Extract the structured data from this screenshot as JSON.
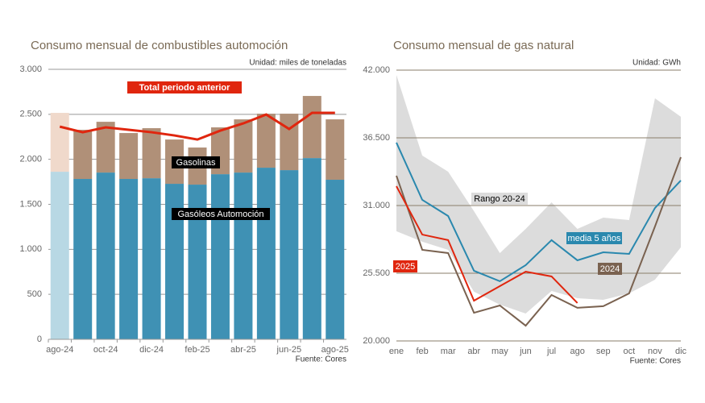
{
  "chart_data": [
    {
      "type": "stacked-bar",
      "title": "Consumo mensual de combustibles automoción",
      "unit_note": "Unidad: miles de toneladas",
      "source": "Fuente: Cores",
      "categories": [
        "ago-24",
        null,
        "oct-24",
        null,
        "dic-24",
        null,
        "feb-25",
        null,
        "abr-25",
        null,
        "jun-25",
        null,
        "ago-25"
      ],
      "highlight_index": 0,
      "series": [
        {
          "name": "Gasóleos Automoción",
          "color": "#3f91b4",
          "highlight_color": "#b8d8e4",
          "values": [
            1862,
            1782,
            1853,
            1782,
            1790,
            1728,
            1719,
            1835,
            1853,
            1907,
            1880,
            2014,
            1773
          ]
        },
        {
          "name": "Gasolinas",
          "color": "#b09078",
          "highlight_color": "#f0d9cb",
          "values": [
            654,
            546,
            564,
            510,
            556,
            492,
            412,
            520,
            591,
            600,
            627,
            690,
            671
          ]
        },
        {
          "name": "Total periodo anterior",
          "type": "line",
          "color": "#e0260e",
          "values": [
            2363,
            2301,
            2355,
            2328,
            2301,
            2265,
            2220,
            2319,
            2399,
            2498,
            2337,
            2516,
            2516
          ]
        }
      ],
      "ylim": [
        0,
        3000
      ],
      "yticks": [
        0,
        500,
        {
          "value": 1000,
          "label": "1.000"
        },
        {
          "value": 1500,
          "label": "1.500"
        },
        {
          "value": 2000,
          "label": "2.000"
        },
        {
          "value": 2500,
          "label": "2.500"
        },
        {
          "value": 3000,
          "label": "3.000"
        }
      ],
      "grid": true
    },
    {
      "type": "line",
      "title": "Consumo mensual de gas natural",
      "unit_note": "Unidad: GWh",
      "source": "Fuente: Cores",
      "categories": [
        "ene",
        "feb",
        "mar",
        "abr",
        "may",
        "jun",
        "jul",
        "ago",
        "sep",
        "oct",
        "nov",
        "dic"
      ],
      "band": {
        "name": "Rango 20-24",
        "color": "#dcdcdc",
        "upper": [
          41610,
          35060,
          33750,
          30540,
          27140,
          29100,
          31260,
          29100,
          30020,
          29820,
          39710,
          38210
        ],
        "lower": [
          28910,
          28060,
          27400,
          24000,
          22950,
          22230,
          24060,
          23470,
          23340,
          23860,
          24980,
          27600
        ]
      },
      "series": [
        {
          "name": "media 5 años",
          "color": "#2a88ae",
          "values": [
            36110,
            31460,
            30150,
            25700,
            24850,
            26160,
            28190,
            26550,
            27200,
            27070,
            30800,
            33030
          ]
        },
        {
          "name": "2024",
          "color": "#7a6250",
          "values": [
            33420,
            27400,
            27140,
            22290,
            22880,
            21240,
            23730,
            22690,
            22820,
            23860,
            29300,
            34930
          ]
        },
        {
          "name": "2025",
          "color": "#e0260e",
          "values": [
            32570,
            28640,
            28190,
            23270,
            24450,
            25630,
            25240,
            23080,
            null,
            null,
            null,
            null
          ]
        }
      ],
      "ylim": [
        20000,
        42000
      ],
      "yticks": [
        {
          "value": 20000,
          "label": "20.000"
        },
        {
          "value": 25500,
          "label": "25.500"
        },
        {
          "value": 31000,
          "label": "31.000"
        },
        {
          "value": 36500,
          "label": "36.500"
        },
        {
          "value": 42000,
          "label": "42.000"
        }
      ],
      "grid": true
    }
  ]
}
